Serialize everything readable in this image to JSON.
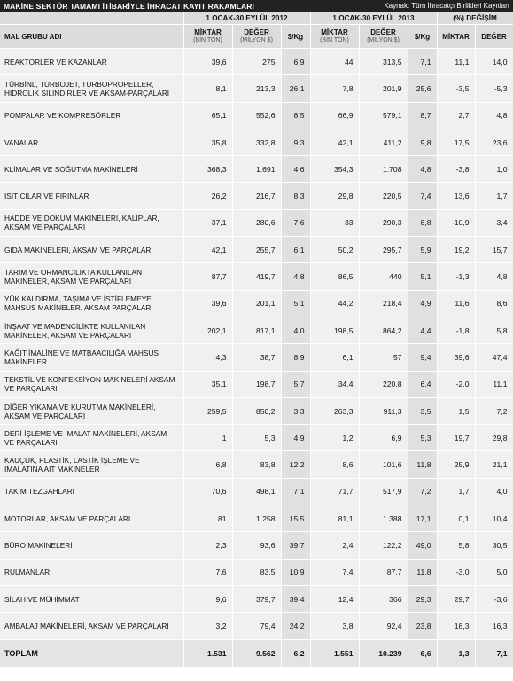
{
  "header": {
    "title": "MAKİNE SEKTÖR TAMAMI İTİBARİYLE İHRACAT KAYIT RAKAMLARI",
    "source": "Kaynak: Tüm İhracatçı Birlikleri Kayıtları"
  },
  "columns": {
    "group_2012": "1 OCAK-30 EYLÜL 2012",
    "group_2013": "1 OCAK-30 EYLÜL 2013",
    "group_change": "(%) DEĞİŞİM",
    "name": "MAL GRUBU ADI",
    "miktar": "MİKTAR",
    "miktar_unit": "(BİN TON)",
    "deger": "DEĞER",
    "deger_unit": "(MİLYON $)",
    "per_kg": "$/Kg",
    "chg_miktar": "MİKTAR",
    "chg_deger": "DEĞER"
  },
  "rows": [
    [
      "REAKTÖRLER VE KAZANLAR",
      "39,6",
      "275",
      "6,9",
      "44",
      "313,5",
      "7,1",
      "11,1",
      "14,0"
    ],
    [
      "TÜRBİNL, TURBOJET, TURBOPROPELLER, HİDROLİK SİLİNDİRLER VE AKSAM-PARÇALARI",
      "8,1",
      "213,3",
      "26,1",
      "7,8",
      "201,9",
      "25,6",
      "-3,5",
      "-5,3"
    ],
    [
      "POMPALAR VE KOMPRESÖRLER",
      "65,1",
      "552,6",
      "8,5",
      "66,9",
      "579,1",
      "8,7",
      "2,7",
      "4,8"
    ],
    [
      "VANALAR",
      "35,8",
      "332,8",
      "9,3",
      "42,1",
      "411,2",
      "9,8",
      "17,5",
      "23,6"
    ],
    [
      "KLİMALAR VE SOĞUTMA MAKİNELERİ",
      "368,3",
      "1.691",
      "4,6",
      "354,3",
      "1.708",
      "4,8",
      "-3,8",
      "1,0"
    ],
    [
      "ISITICILAR VE FIRINLAR",
      "26,2",
      "216,7",
      "8,3",
      "29,8",
      "220,5",
      "7,4",
      "13,6",
      "1,7"
    ],
    [
      "HADDE VE DÖKÜM MAKİNELERİ, KALIPLAR, AKSAM VE PARÇALARI",
      "37,1",
      "280,6",
      "7,6",
      "33",
      "290,3",
      "8,8",
      "-10,9",
      "3,4"
    ],
    [
      "GIDA MAKİNELERİ, AKSAM VE PARÇALARI",
      "42,1",
      "255,7",
      "6,1",
      "50,2",
      "295,7",
      "5,9",
      "19,2",
      "15,7"
    ],
    [
      "TARIM VE ORMANCILIKTA KULLANILAN MAKİNELER, AKSAM VE PARÇALARI",
      "87,7",
      "419,7",
      "4,8",
      "86,5",
      "440",
      "5,1",
      "-1,3",
      "4,8"
    ],
    [
      "YÜK KALDIRMA, TAŞIMA VE İSTİFLEMEYE MAHSUS MAKİNELER, AKSAM PARÇALARI",
      "39,6",
      "201,1",
      "5,1",
      "44,2",
      "218,4",
      "4,9",
      "11,6",
      "8,6"
    ],
    [
      "İNŞAAT VE MADENCİLİKTE KULLANILAN MAKİNELER, AKSAM VE PARÇALARI",
      "202,1",
      "817,1",
      "4,0",
      "198,5",
      "864,2",
      "4,4",
      "-1,8",
      "5,8"
    ],
    [
      "KAĞIT İMALİNE VE MATBAACILIĞA MAHSUS MAKİNELER",
      "4,3",
      "38,7",
      "8,9",
      "6,1",
      "57",
      "9,4",
      "39,6",
      "47,4"
    ],
    [
      "TEKSTİL VE KONFEKSİYON MAKİNELERİ AKSAM VE PARÇALARI",
      "35,1",
      "198,7",
      "5,7",
      "34,4",
      "220,8",
      "6,4",
      "-2,0",
      "11,1"
    ],
    [
      "DİĞER YIKAMA VE KURUTMA MAKİNELERİ, AKSAM VE PARÇALARI",
      "259,5",
      "850,2",
      "3,3",
      "263,3",
      "911,3",
      "3,5",
      "1,5",
      "7,2"
    ],
    [
      "DERİ İŞLEME VE İMALAT MAKİNELERİ, AKSAM VE PARÇALARI",
      "1",
      "5,3",
      "4,9",
      "1,2",
      "6,9",
      "5,3",
      "19,7",
      "29,8"
    ],
    [
      "KAUÇUK, PLASTİK, LASTİK İŞLEME VE İMALATINA AİT MAKİNELER",
      "6,8",
      "83,8",
      "12,2",
      "8,6",
      "101,6",
      "11,8",
      "25,9",
      "21,1"
    ],
    [
      "TAKIM TEZGAHLARI",
      "70,6",
      "498,1",
      "7,1",
      "71,7",
      "517,9",
      "7,2",
      "1,7",
      "4,0"
    ],
    [
      "MOTORLAR, AKSAM VE PARÇALARI",
      "81",
      "1.258",
      "15,5",
      "81,1",
      "1.388",
      "17,1",
      "0,1",
      "10,4"
    ],
    [
      "BÜRO MAKİNELERİ",
      "2,3",
      "93,6",
      "39,7",
      "2,4",
      "122,2",
      "49,0",
      "5,8",
      "30,5"
    ],
    [
      "RULMANLAR",
      "7,6",
      "83,5",
      "10,9",
      "7,4",
      "87,7",
      "11,8",
      "-3,0",
      "5,0"
    ],
    [
      "SİLAH VE MÜHİMMAT",
      "9,6",
      "379,7",
      "39,4",
      "12,4",
      "366",
      "29,3",
      "29,7",
      "-3,6"
    ],
    [
      "AMBALAJ MAKİNELERİ, AKSAM VE PARÇALARI",
      "3,2",
      "79,4",
      "24,2",
      "3,8",
      "92,4",
      "23,8",
      "18,3",
      "16,3"
    ]
  ],
  "total": [
    "TOPLAM",
    "1.531",
    "9.562",
    "6,2",
    "1.551",
    "10.239",
    "6,6",
    "1,3",
    "7,1"
  ]
}
